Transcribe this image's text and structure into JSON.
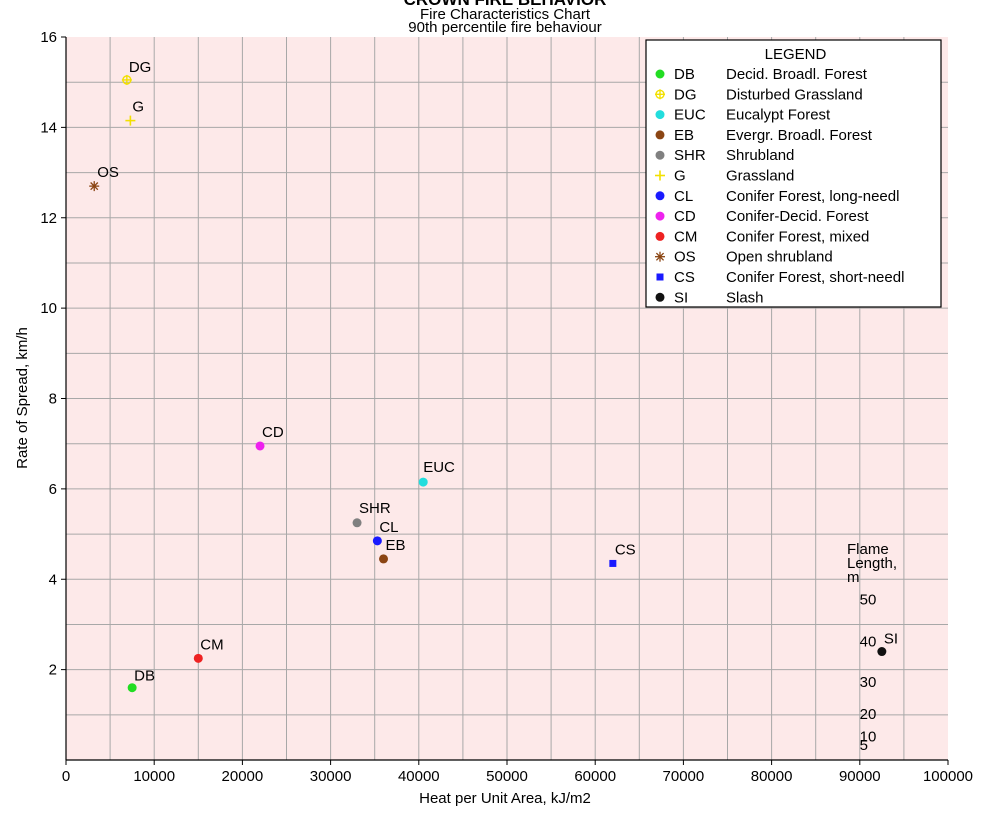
{
  "chart_data": {
    "type": "scatter",
    "title": "CROWN FIRE BEHAVIOR",
    "subtitle_1": "Fire Characteristics Chart",
    "subtitle_2": "90th percentile fire behaviour",
    "xlabel": "Heat per Unit Area, kJ/m2",
    "ylabel": "Rate of Spread, km/h",
    "xlim": [
      0,
      100000
    ],
    "ylim": [
      0,
      16
    ],
    "x_ticks": [
      0,
      10000,
      20000,
      30000,
      40000,
      50000,
      60000,
      70000,
      80000,
      90000,
      100000
    ],
    "x_tick_labels": [
      "0",
      "10000",
      "20000",
      "30000",
      "40000",
      "50000",
      "60000",
      "70000",
      "80000",
      "90000",
      "100000"
    ],
    "y_ticks": [
      2,
      4,
      6,
      8,
      10,
      12,
      14,
      16
    ],
    "y_tick_labels": [
      "2",
      "4",
      "6",
      "8",
      "10",
      "12",
      "14",
      "16"
    ],
    "grid": true,
    "band_colors": [
      "#fde9e9",
      "#f9cdcd",
      "#f4b0b0",
      "#ee9393",
      "#e76f6f",
      "#df4e4e",
      "#d41a1a"
    ],
    "flame_length_title": [
      "Flame",
      "Length,",
      "m"
    ],
    "flame_length_labels": [
      {
        "text": "5",
        "x": 91000,
        "y": 0.33
      },
      {
        "text": "10",
        "x": 91000,
        "y": 0.52
      },
      {
        "text": "20",
        "x": 91000,
        "y": 1.02
      },
      {
        "text": "30",
        "x": 91000,
        "y": 1.73
      },
      {
        "text": "40",
        "x": 91000,
        "y": 2.62
      },
      {
        "text": "50",
        "x": 91000,
        "y": 3.55
      }
    ],
    "legend": {
      "title": "LEGEND",
      "placement": "top-right",
      "entries": [
        {
          "code": "DB",
          "name": "Decid. Broadl. Forest",
          "color": "#22dd22",
          "marker": "circle"
        },
        {
          "code": "DG",
          "name": "Disturbed Grassland",
          "color": "#f2e000",
          "marker": "plus-circle"
        },
        {
          "code": "EUC",
          "name": "Eucalypt Forest",
          "color": "#22dddd",
          "marker": "circle"
        },
        {
          "code": "EB",
          "name": "Evergr. Broadl. Forest",
          "color": "#8b4513",
          "marker": "circle"
        },
        {
          "code": "SHR",
          "name": "Shrubland",
          "color": "#808080",
          "marker": "circle"
        },
        {
          "code": "G",
          "name": "Grassland",
          "color": "#f2e000",
          "marker": "plus"
        },
        {
          "code": "CL",
          "name": "Conifer Forest, long-needl",
          "color": "#1a1aff",
          "marker": "circle"
        },
        {
          "code": "CD",
          "name": "Conifer-Decid. Forest",
          "color": "#ee22ee",
          "marker": "circle"
        },
        {
          "code": "CM",
          "name": "Conifer Forest, mixed",
          "color": "#ee2222",
          "marker": "circle"
        },
        {
          "code": "OS",
          "name": "Open shrubland",
          "color": "#8b4513",
          "marker": "star"
        },
        {
          "code": "CS",
          "name": "Conifer Forest, short-needl",
          "color": "#1a1aff",
          "marker": "square"
        },
        {
          "code": "SI",
          "name": "Slash",
          "color": "#111111",
          "marker": "circle"
        }
      ]
    },
    "series": [
      {
        "code": "DB",
        "x": 7500,
        "y": 1.6
      },
      {
        "code": "DG",
        "x": 6900,
        "y": 15.05
      },
      {
        "code": "EUC",
        "x": 40500,
        "y": 6.15
      },
      {
        "code": "EB",
        "x": 36000,
        "y": 4.45
      },
      {
        "code": "SHR",
        "x": 33000,
        "y": 5.25
      },
      {
        "code": "G",
        "x": 7300,
        "y": 14.15
      },
      {
        "code": "CL",
        "x": 35300,
        "y": 4.85
      },
      {
        "code": "CD",
        "x": 22000,
        "y": 6.95
      },
      {
        "code": "CM",
        "x": 15000,
        "y": 2.25
      },
      {
        "code": "OS",
        "x": 3200,
        "y": 12.7
      },
      {
        "code": "CS",
        "x": 62000,
        "y": 4.35
      },
      {
        "code": "SI",
        "x": 92500,
        "y": 2.4
      }
    ]
  }
}
